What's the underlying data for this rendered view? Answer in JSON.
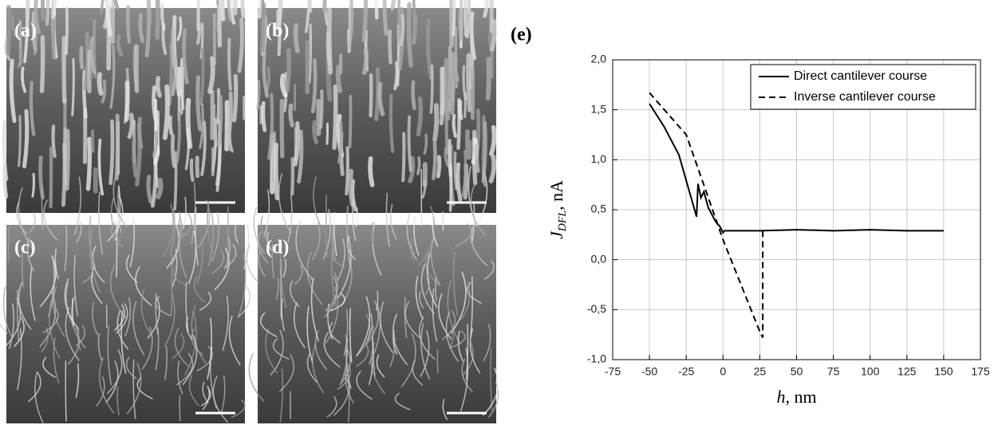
{
  "panels": [
    {
      "label": "(a)"
    },
    {
      "label": "(b)"
    },
    {
      "label": "(c)"
    },
    {
      "label": "(d)"
    }
  ],
  "chart_data": {
    "type": "line",
    "panel_label": "(e)",
    "xlabel": {
      "symbol": "h",
      "unit": ", nm"
    },
    "ylabel": {
      "symbol": "J",
      "subscript": "DFL",
      "unit": ", nA"
    },
    "xlim": [
      -75,
      175
    ],
    "xticks": [
      -75,
      -50,
      -25,
      0,
      25,
      50,
      75,
      100,
      125,
      150,
      175
    ],
    "ylim": [
      -1.0,
      2.0
    ],
    "yticks": [
      {
        "value": -1.0,
        "label": "-1,0"
      },
      {
        "value": -0.5,
        "label": "-0,5"
      },
      {
        "value": 0,
        "label": "0,0"
      },
      {
        "value": 0.5,
        "label": "0,5"
      },
      {
        "value": 1.0,
        "label": "1,0"
      },
      {
        "value": 1.5,
        "label": "1,5"
      },
      {
        "value": 2.0,
        "label": "2,0"
      }
    ],
    "grid": true,
    "legend": "top-right",
    "series": [
      {
        "name": "Direct cantilever course",
        "color": "#000000",
        "dash": "solid",
        "x": [
          -50,
          -40,
          -30,
          -18,
          -17,
          -15,
          -13,
          -10,
          -5,
          -2,
          0,
          1,
          25,
          50,
          75,
          100,
          125,
          150
        ],
        "values": [
          1.56,
          1.33,
          1.05,
          0.43,
          0.76,
          0.62,
          0.68,
          0.52,
          0.38,
          0.33,
          0.27,
          0.29,
          0.29,
          0.3,
          0.29,
          0.3,
          0.29,
          0.29
        ]
      },
      {
        "name": "Inverse cantilever course",
        "color": "#000000",
        "dash": "dashed",
        "x": [
          -50,
          -25,
          0,
          25,
          27,
          27
        ],
        "values": [
          1.67,
          1.25,
          0.2,
          -0.72,
          -0.78,
          0.29
        ]
      }
    ]
  }
}
